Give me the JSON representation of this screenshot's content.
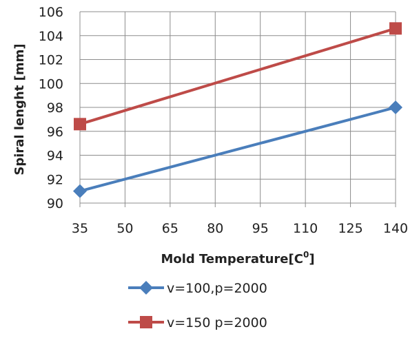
{
  "chart_data": {
    "type": "line",
    "title": "",
    "xlabel": "Mold Temperature[C",
    "xlabel_superscript": "0",
    "xlabel_suffix": "]",
    "ylabel": "Spiral lenght [mm]",
    "x": [
      35,
      140
    ],
    "x_ticks": [
      "35",
      "50",
      "65",
      "80",
      "95",
      "110",
      "125",
      "140"
    ],
    "xlim": [
      35,
      140
    ],
    "y_ticks": [
      "90",
      "92",
      "94",
      "96",
      "98",
      "100",
      "102",
      "104",
      "106"
    ],
    "ylim": [
      90,
      106
    ],
    "grid": {
      "horizontal": true,
      "vertical": true
    },
    "legend_position": "bottom",
    "series": [
      {
        "name": "v=100,p=2000",
        "values": [
          91.0,
          98.0
        ],
        "color": "#4a7ebb",
        "marker": "diamond"
      },
      {
        "name": "v=150 p=2000",
        "values": [
          96.6,
          104.6
        ],
        "color": "#be4b48",
        "marker": "square"
      }
    ]
  }
}
